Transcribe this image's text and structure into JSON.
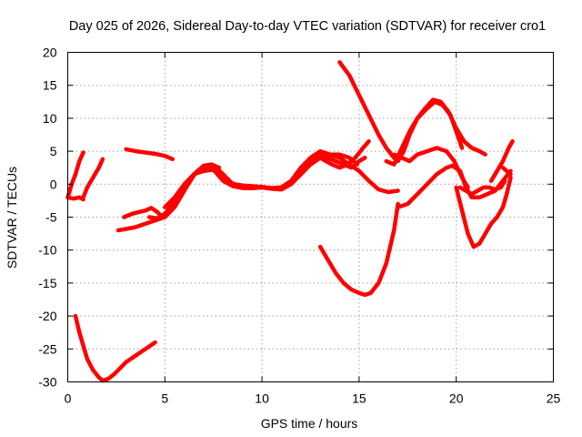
{
  "chart_data": {
    "type": "line",
    "title": "Day 025 of 2026, Sidereal Day-to-day VTEC variation (SDTVAR) for receiver cro1",
    "xlabel": "GPS time / hours",
    "ylabel": "SDTVAR / TECUs",
    "xlim": [
      0,
      25
    ],
    "ylim": [
      -30,
      20
    ],
    "xticks": [
      0,
      5,
      10,
      15,
      20,
      25
    ],
    "yticks": [
      -30,
      -25,
      -20,
      -15,
      -10,
      -5,
      0,
      5,
      10,
      15,
      20
    ],
    "grid": true,
    "legend": "none",
    "color": "#ff0000",
    "series": [
      {
        "x": [
          0.0,
          0.2,
          0.4,
          0.6,
          0.8
        ],
        "y": [
          -2.0,
          0.0,
          1.5,
          3.5,
          4.8
        ]
      },
      {
        "x": [
          0.0,
          0.3,
          0.6,
          0.8
        ],
        "y": [
          -2.0,
          -2.2,
          -2.0,
          -2.3
        ]
      },
      {
        "x": [
          0.8,
          1.0,
          1.3,
          1.6,
          1.8
        ],
        "y": [
          -2.0,
          -0.5,
          1.0,
          2.5,
          3.8
        ]
      },
      {
        "x": [
          0.4,
          0.6,
          0.8,
          1.0,
          1.3,
          1.6,
          1.8,
          2.1,
          2.4,
          3.0,
          3.5,
          4.0,
          4.5
        ],
        "y": [
          -20.0,
          -22.5,
          -24.5,
          -26.5,
          -28.2,
          -29.3,
          -29.8,
          -29.5,
          -28.8,
          -27.0,
          -26.0,
          -25.0,
          -24.0
        ]
      },
      {
        "x": [
          3.0,
          3.5,
          4.0,
          4.5,
          5.0,
          5.4
        ],
        "y": [
          5.3,
          5.0,
          4.8,
          4.6,
          4.3,
          3.8
        ]
      },
      {
        "x": [
          2.9,
          3.3,
          3.7,
          4.0,
          4.3,
          4.6,
          4.8,
          5.0
        ],
        "y": [
          -5.0,
          -4.5,
          -4.2,
          -4.0,
          -3.6,
          -4.2,
          -4.8,
          -4.5
        ]
      },
      {
        "x": [
          2.6,
          3.0,
          3.5,
          4.0,
          4.5,
          5.0,
          5.5,
          6.0,
          6.5,
          7.0,
          7.5,
          8.0,
          8.5,
          9.0,
          9.5,
          10.0,
          10.5,
          11.0,
          11.5,
          12.0,
          12.5,
          13.0,
          13.4,
          13.8,
          14.2,
          14.6,
          15.0,
          15.3
        ],
        "y": [
          -7.0,
          -6.8,
          -6.5,
          -6.0,
          -5.5,
          -5.0,
          -3.5,
          -1.0,
          1.5,
          2.5,
          2.8,
          1.5,
          0.0,
          -0.5,
          -0.6,
          -0.5,
          -0.6,
          -0.5,
          0.5,
          2.0,
          3.5,
          4.5,
          4.0,
          3.5,
          3.0,
          2.5,
          3.5,
          4.0
        ]
      },
      {
        "x": [
          4.2,
          4.6,
          5.0,
          5.4,
          5.8,
          6.2,
          6.6,
          7.0,
          7.4,
          7.8
        ],
        "y": [
          -5.0,
          -5.2,
          -4.5,
          -3.0,
          -1.5,
          0.0,
          1.8,
          2.8,
          3.0,
          2.5
        ]
      },
      {
        "x": [
          5.0,
          5.5,
          6.0,
          6.5,
          7.0,
          7.5,
          8.0,
          8.5,
          9.0,
          9.5,
          10.0,
          10.5,
          11.0,
          11.5,
          12.0,
          12.5,
          13.0,
          13.5,
          14.0,
          14.5,
          15.0,
          15.5,
          16.0,
          16.5,
          17.0
        ],
        "y": [
          -3.5,
          -2.0,
          0.0,
          1.5,
          2.0,
          2.2,
          0.5,
          -0.3,
          -0.6,
          -0.6,
          -0.5,
          -0.7,
          -0.8,
          0.0,
          1.5,
          3.0,
          4.0,
          4.5,
          4.0,
          3.0,
          2.0,
          0.5,
          -0.8,
          -1.2,
          -1.0
        ]
      },
      {
        "x": [
          5.8,
          6.2,
          6.6,
          7.0,
          7.4,
          7.8,
          8.2,
          8.6,
          9.0,
          9.5,
          10.0,
          10.5,
          11.0,
          11.5,
          12.0,
          12.5,
          13.0,
          13.5,
          14.0,
          14.5,
          14.9
        ],
        "y": [
          -1.5,
          0.5,
          1.8,
          2.0,
          2.2,
          1.8,
          0.5,
          0.0,
          -0.2,
          -0.3,
          -0.4,
          -0.6,
          -0.5,
          0.5,
          2.5,
          4.0,
          5.0,
          4.5,
          4.5,
          4.0,
          3.0
        ]
      },
      {
        "x": [
          13.0,
          13.3,
          13.6,
          14.0,
          14.4,
          14.8,
          15.2,
          15.5
        ],
        "y": [
          4.0,
          3.5,
          3.0,
          2.5,
          3.0,
          4.0,
          5.5,
          6.5
        ]
      },
      {
        "x": [
          13.0,
          13.4,
          13.8,
          14.2,
          14.6,
          15.0,
          15.3,
          15.6,
          16.0,
          16.4,
          16.8,
          17.0
        ],
        "y": [
          -9.5,
          -11.5,
          -13.5,
          -15.0,
          -16.0,
          -16.5,
          -16.8,
          -16.5,
          -15.0,
          -12.0,
          -7.0,
          -3.0
        ]
      },
      {
        "x": [
          14.0,
          14.5,
          15.0,
          15.5,
          16.0,
          16.4,
          16.8,
          17.0,
          17.3,
          17.6,
          18.0,
          18.5,
          18.9,
          19.3,
          19.7,
          20.0,
          20.3
        ],
        "y": [
          18.5,
          16.5,
          13.5,
          10.5,
          7.5,
          5.5,
          4.0,
          3.5,
          5.0,
          7.5,
          10.0,
          11.5,
          12.5,
          12.0,
          10.5,
          8.0,
          5.5
        ]
      },
      {
        "x": [
          16.4,
          16.8,
          17.2,
          17.6,
          18.0,
          18.4,
          18.8,
          19.2,
          19.6,
          20.0,
          20.4,
          20.8,
          21.2,
          21.5
        ],
        "y": [
          3.5,
          3.0,
          5.5,
          8.0,
          10.0,
          11.5,
          12.8,
          12.5,
          11.0,
          8.5,
          6.5,
          5.5,
          5.0,
          4.5
        ]
      },
      {
        "x": [
          16.8,
          17.2,
          17.6,
          18.0,
          18.5,
          19.0,
          19.5,
          19.9,
          20.3,
          20.6
        ],
        "y": [
          4.5,
          4.0,
          3.5,
          4.5,
          5.0,
          5.5,
          5.0,
          3.5,
          1.0,
          -0.5
        ]
      },
      {
        "x": [
          17.0,
          17.5,
          18.0,
          18.5,
          19.0,
          19.5,
          19.8,
          20.2,
          20.5,
          20.8,
          21.2,
          21.6,
          22.0,
          22.4,
          22.8
        ],
        "y": [
          -3.5,
          -3.0,
          -1.5,
          0.0,
          1.5,
          2.5,
          2.8,
          2.0,
          -0.5,
          -2.0,
          -2.0,
          -1.5,
          -1.0,
          0.5,
          2.0
        ]
      },
      {
        "x": [
          20.0,
          20.3,
          20.6,
          20.9,
          21.2,
          21.5,
          21.8,
          22.1,
          22.4,
          22.6,
          22.8
        ],
        "y": [
          -0.5,
          -4.0,
          -7.5,
          -9.5,
          -9.0,
          -7.5,
          -6.0,
          -5.0,
          -3.5,
          -1.5,
          1.0
        ]
      },
      {
        "x": [
          20.2,
          20.5,
          20.8,
          21.1,
          21.4,
          21.7,
          22.0,
          22.3,
          22.5
        ],
        "y": [
          -0.5,
          -1.0,
          -1.5,
          -1.0,
          -0.5,
          -0.5,
          -0.8,
          -0.5,
          0.5
        ]
      },
      {
        "x": [
          21.8,
          22.1,
          22.4,
          22.7,
          22.9
        ],
        "y": [
          0.5,
          2.0,
          3.5,
          5.5,
          6.5
        ]
      },
      {
        "x": [
          22.4,
          22.6,
          22.8
        ],
        "y": [
          2.5,
          2.0,
          1.5
        ]
      }
    ]
  }
}
